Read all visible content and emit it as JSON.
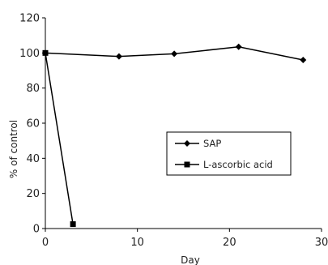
{
  "chart_data": {
    "type": "line",
    "title": "",
    "xlabel": "Day",
    "ylabel": "% of control",
    "xlim": [
      0,
      30
    ],
    "ylim": [
      0,
      120
    ],
    "xticks": [
      0,
      10,
      20,
      30
    ],
    "yticks": [
      0,
      20,
      40,
      60,
      80,
      100,
      120
    ],
    "grid": false,
    "legend_position": "center-right",
    "series": [
      {
        "name": "SAP",
        "marker": "diamond",
        "color": "#000000",
        "x": [
          0,
          8,
          14,
          21,
          28
        ],
        "y": [
          100,
          98,
          99.5,
          103.5,
          96
        ]
      },
      {
        "name": "L-ascorbic acid",
        "marker": "square",
        "color": "#000000",
        "x": [
          0,
          3
        ],
        "y": [
          100,
          2.5
        ]
      }
    ]
  }
}
